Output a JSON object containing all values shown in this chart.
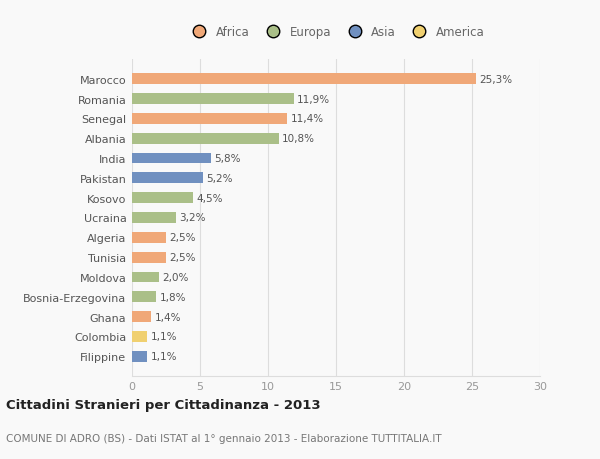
{
  "categories": [
    "Marocco",
    "Romania",
    "Senegal",
    "Albania",
    "India",
    "Pakistan",
    "Kosovo",
    "Ucraina",
    "Algeria",
    "Tunisia",
    "Moldova",
    "Bosnia-Erzegovina",
    "Ghana",
    "Colombia",
    "Filippine"
  ],
  "values": [
    25.3,
    11.9,
    11.4,
    10.8,
    5.8,
    5.2,
    4.5,
    3.2,
    2.5,
    2.5,
    2.0,
    1.8,
    1.4,
    1.1,
    1.1
  ],
  "labels": [
    "25,3%",
    "11,9%",
    "11,4%",
    "10,8%",
    "5,8%",
    "5,2%",
    "4,5%",
    "3,2%",
    "2,5%",
    "2,5%",
    "2,0%",
    "1,8%",
    "1,4%",
    "1,1%",
    "1,1%"
  ],
  "continents": [
    "Africa",
    "Europa",
    "Africa",
    "Europa",
    "Asia",
    "Asia",
    "Europa",
    "Europa",
    "Africa",
    "Africa",
    "Europa",
    "Europa",
    "Africa",
    "America",
    "Asia"
  ],
  "continent_colors": {
    "Africa": "#F0A878",
    "Europa": "#AABF88",
    "Asia": "#7090C0",
    "America": "#F0D070"
  },
  "legend_order": [
    "Africa",
    "Europa",
    "Asia",
    "America"
  ],
  "title": "Cittadini Stranieri per Cittadinanza - 2013",
  "subtitle": "COMUNE DI ADRO (BS) - Dati ISTAT al 1° gennaio 2013 - Elaborazione TUTTITALIA.IT",
  "xlim": [
    0,
    30
  ],
  "xticks": [
    0,
    5,
    10,
    15,
    20,
    25,
    30
  ],
  "bg_color": "#f9f9f9",
  "grid_color": "#dddddd",
  "bar_height": 0.55
}
